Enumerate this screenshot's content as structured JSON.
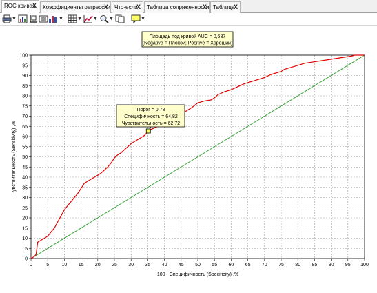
{
  "tabs": [
    {
      "label": "ROC кривая",
      "active": true
    },
    {
      "label": "Коэффициенты регрессии",
      "active": false
    },
    {
      "label": "Что-если",
      "active": false
    },
    {
      "label": "Таблица сопряженности",
      "active": false
    },
    {
      "label": "Таблица",
      "active": false
    }
  ],
  "tab_close_glyph": "X",
  "toolbar": {
    "icons": [
      "print-icon",
      "chart-data-icon",
      "chart-layout-icon",
      "bar-chart-icon",
      "grid-icon",
      "line-style-icon",
      "zoom-icon",
      "copy-icon",
      "annotation-icon"
    ]
  },
  "colors": {
    "roc_curve": "#e00000",
    "diagonal": "#2a9a2a",
    "marker": "#ffff66",
    "annotation_bg": "#ffffcc"
  },
  "chart_data": {
    "type": "line",
    "title_lines": [
      "Площадь под кривой AUC = 0,687",
      "(Negative = Плохой; Positive = Хороший)"
    ],
    "xlabel": "100 - Специфичность (Specificity) ,%",
    "ylabel": "Чувствительность (Sensitivity) ,%",
    "xlim": [
      0,
      100
    ],
    "ylim": [
      0,
      100
    ],
    "xticks": [
      0,
      5,
      10,
      15,
      20,
      25,
      30,
      35,
      40,
      45,
      50,
      55,
      60,
      65,
      70,
      75,
      80,
      85,
      90,
      95,
      100
    ],
    "yticks": [
      0,
      5,
      10,
      15,
      20,
      25,
      30,
      35,
      40,
      45,
      50,
      55,
      60,
      65,
      70,
      75,
      80,
      85,
      90,
      95,
      100
    ],
    "grid": true,
    "series": [
      {
        "x": [
          0,
          1,
          1.5,
          2,
          3,
          4,
          5,
          6,
          7,
          8,
          9,
          10,
          11,
          12,
          13,
          14,
          15,
          16,
          17,
          18,
          19,
          20,
          21,
          22,
          23,
          24,
          25,
          26,
          27,
          28,
          29,
          30,
          31,
          32,
          33,
          34,
          35.18,
          36,
          38,
          40,
          42,
          44,
          46,
          48,
          50,
          52,
          54,
          55,
          56,
          58,
          60,
          62,
          64,
          66,
          68,
          70,
          72,
          74,
          75,
          76,
          78,
          80,
          82,
          84,
          86,
          88,
          90,
          92,
          94,
          96,
          97,
          98,
          100
        ],
        "y": [
          0,
          1,
          2,
          8,
          9,
          10,
          11,
          13,
          15,
          18,
          21,
          24,
          26,
          28,
          30,
          32,
          34.5,
          37,
          38,
          39,
          40,
          41,
          42,
          43.5,
          45,
          47,
          49.5,
          51,
          52,
          53.5,
          55,
          56.5,
          57.5,
          58.5,
          59.5,
          60.5,
          62.72,
          63.5,
          65,
          67,
          69,
          70,
          72,
          74,
          76.5,
          77.5,
          78,
          79,
          80.5,
          82,
          83,
          84.5,
          86,
          87,
          88,
          89,
          90.5,
          91.5,
          92,
          93,
          94,
          95,
          96,
          96.5,
          97,
          97.5,
          98,
          98.5,
          99,
          99.5,
          100,
          100,
          100
        ]
      },
      {
        "x": [
          0,
          100
        ],
        "y": [
          0,
          100
        ]
      }
    ],
    "annotation": {
      "lines": [
        "Порог = 0,78",
        "Специфичность = 64,82",
        "Чувствительность = 62,72"
      ],
      "point": {
        "x": 35.18,
        "y": 62.72
      }
    }
  }
}
